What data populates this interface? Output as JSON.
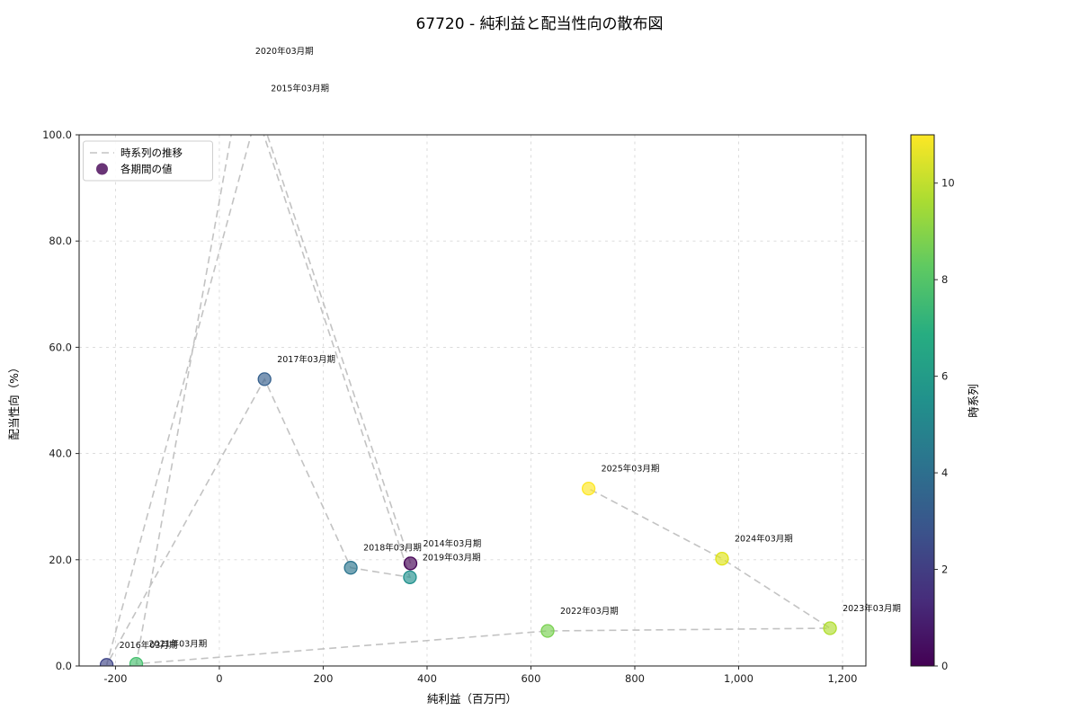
{
  "chart_data": {
    "type": "scatter",
    "title": "67720 - 純利益と配当性向の散布図",
    "xlabel": "純利益（百万円）",
    "ylabel": "配当性向（%）",
    "xlim": [
      -270,
      1245
    ],
    "ylim": [
      0,
      100
    ],
    "grid": true,
    "xticks": [
      -200,
      0,
      200,
      400,
      600,
      800,
      1000,
      1200
    ],
    "xtick_labels": [
      "-200",
      "0",
      "200",
      "400",
      "600",
      "800",
      "1,000",
      "1,200"
    ],
    "yticks": [
      0,
      20,
      40,
      60,
      80,
      100
    ],
    "ytick_labels": [
      "0.0",
      "20.0",
      "40.0",
      "60.0",
      "80.0",
      "100.0"
    ],
    "legend": {
      "position": "upper left",
      "line_label": "時系列の推移",
      "marker_label": "各期間の値",
      "marker_color": "#440154",
      "line_color": "#bdbdbd"
    },
    "colorbar": {
      "label": "時系列",
      "min": 0,
      "max": 11,
      "ticks": [
        0,
        2,
        4,
        6,
        8,
        10
      ],
      "gradient": [
        "#440154",
        "#472d7b",
        "#3b528b",
        "#2c728e",
        "#21918c",
        "#27ad81",
        "#5ec962",
        "#aadc32",
        "#fde725"
      ]
    },
    "points": [
      {
        "label": "2014年03月期",
        "x": 368,
        "y": 19.3,
        "t": 0,
        "color": "#440154"
      },
      {
        "label": "2015年03月期",
        "x": 75,
        "y": 105,
        "t": 1,
        "color": "#482576",
        "offchart": true
      },
      {
        "label": "2016年03月期",
        "x": -217,
        "y": 0.2,
        "t": 2,
        "color": "#404688"
      },
      {
        "label": "2017年03月期",
        "x": 87,
        "y": 54.0,
        "t": 3,
        "color": "#35608d"
      },
      {
        "label": "2018年03月期",
        "x": 253,
        "y": 18.5,
        "t": 4,
        "color": "#2b748e"
      },
      {
        "label": "2019年03月期",
        "x": 367,
        "y": 16.7,
        "t": 5,
        "color": "#21918d"
      },
      {
        "label": "2020年03月期",
        "x": 45,
        "y": 112,
        "t": 6,
        "color": "#22a884",
        "offchart": true
      },
      {
        "label": "2021年03月期",
        "x": -160,
        "y": 0.4,
        "t": 7,
        "color": "#46c06f"
      },
      {
        "label": "2022年03月期",
        "x": 632,
        "y": 6.6,
        "t": 8,
        "color": "#7ad151"
      },
      {
        "label": "2023年03月期",
        "x": 1176,
        "y": 7.1,
        "t": 9,
        "color": "#b0dd2f"
      },
      {
        "label": "2024年03月期",
        "x": 968,
        "y": 20.2,
        "t": 10,
        "color": "#dfe318"
      },
      {
        "label": "2025年03月期",
        "x": 711,
        "y": 33.4,
        "t": 11,
        "color": "#fde725"
      }
    ]
  }
}
